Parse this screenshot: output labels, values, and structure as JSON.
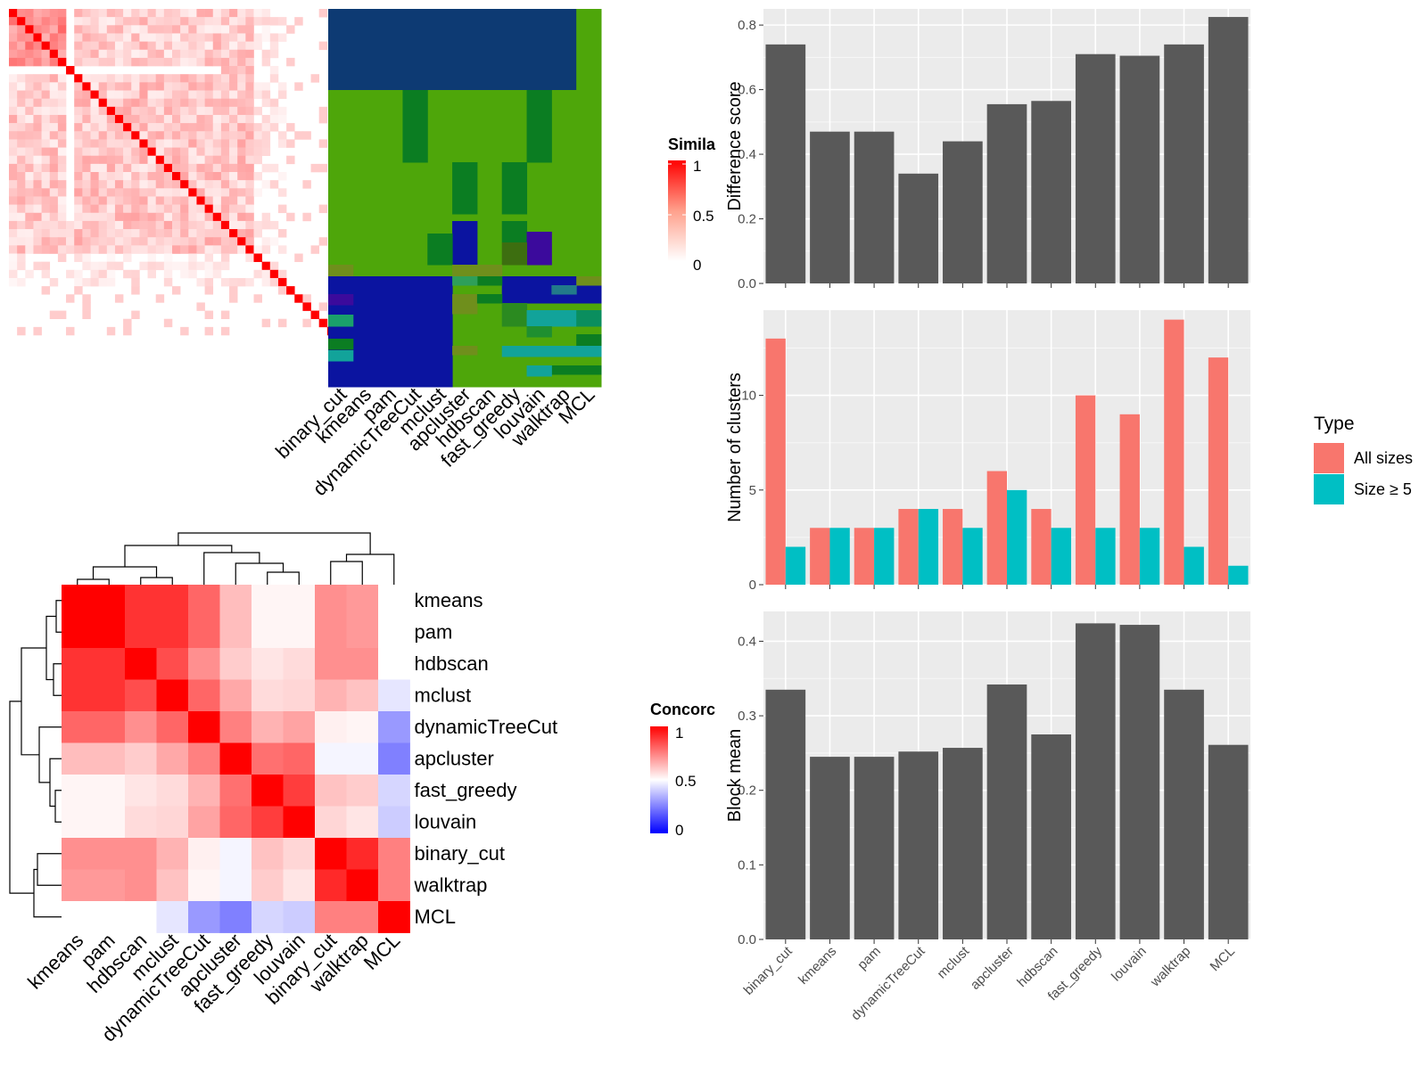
{
  "methods_heatmap_order": [
    "binary_cut",
    "kmeans",
    "pam",
    "dynamicTreeCut",
    "mclust",
    "apcluster",
    "hdbscan",
    "fast_greedy",
    "louvain",
    "walktrap",
    "MCL"
  ],
  "concordance_order": [
    "kmeans",
    "pam",
    "hdbscan",
    "mclust",
    "dynamicTreeCut",
    "apcluster",
    "fast_greedy",
    "louvain",
    "binary_cut",
    "walktrap",
    "MCL"
  ],
  "colors": {
    "heat_red": "#ff0000",
    "bar_dark": "#595959",
    "panel_bg": "#ebebeb",
    "all_sizes": "#f8766d",
    "size_ge5": "#00bfc4",
    "navy": "#0d3a73",
    "green": "#4ea60a",
    "dark_green": "#0b7d22",
    "blue": "#0b14a0",
    "purple": "#3b0a9c",
    "teal": "#12a39a"
  },
  "legends": {
    "similarity": {
      "title": "Simila",
      "ticks": [
        "1",
        "0.5",
        "0"
      ]
    },
    "concordance": {
      "title": "Concorc",
      "ticks": [
        "1",
        "0.5",
        "0"
      ]
    },
    "type": {
      "title": "Type",
      "items": [
        "All sizes",
        "Size ≥ 5"
      ]
    }
  },
  "chart_data": [
    {
      "type": "bar",
      "ylabel": "Difference score",
      "categories": [
        "binary_cut",
        "kmeans",
        "pam",
        "dynamicTreeCut",
        "mclust",
        "apcluster",
        "hdbscan",
        "fast_greedy",
        "louvain",
        "walktrap",
        "MCL"
      ],
      "values": [
        0.74,
        0.47,
        0.47,
        0.34,
        0.44,
        0.555,
        0.565,
        0.71,
        0.705,
        0.74,
        0.825
      ],
      "ylim": [
        0,
        0.85
      ],
      "yticks": [
        "0.0",
        "0.2",
        "0.4",
        "0.6",
        "0.8"
      ]
    },
    {
      "type": "bar",
      "ylabel": "Number of clusters",
      "categories": [
        "binary_cut",
        "kmeans",
        "pam",
        "dynamicTreeCut",
        "mclust",
        "apcluster",
        "hdbscan",
        "fast_greedy",
        "louvain",
        "walktrap",
        "MCL"
      ],
      "series": [
        {
          "name": "All sizes",
          "values": [
            13,
            3,
            3,
            4,
            4,
            6,
            4,
            10,
            9,
            14,
            12
          ]
        },
        {
          "name": "Size ≥ 5",
          "values": [
            2,
            3,
            3,
            4,
            3,
            5,
            3,
            3,
            3,
            2,
            1
          ]
        }
      ],
      "ylim": [
        0,
        14.5
      ],
      "yticks": [
        "0",
        "5",
        "10"
      ]
    },
    {
      "type": "bar",
      "ylabel": "Block mean",
      "categories": [
        "binary_cut",
        "kmeans",
        "pam",
        "dynamicTreeCut",
        "mclust",
        "apcluster",
        "hdbscan",
        "fast_greedy",
        "louvain",
        "walktrap",
        "MCL"
      ],
      "values": [
        0.335,
        0.245,
        0.245,
        0.252,
        0.257,
        0.342,
        0.275,
        0.424,
        0.422,
        0.335,
        0.261
      ],
      "ylim": [
        0,
        0.44
      ],
      "yticks": [
        "0.0",
        "0.1",
        "0.2",
        "0.3",
        "0.4"
      ]
    },
    {
      "type": "heatmap",
      "rows": [
        "kmeans",
        "pam",
        "hdbscan",
        "mclust",
        "dynamicTreeCut",
        "apcluster",
        "fast_greedy",
        "louvain",
        "binary_cut",
        "walktrap",
        "MCL"
      ],
      "columns": [
        "kmeans",
        "pam",
        "hdbscan",
        "mclust",
        "dynamicTreeCut",
        "apcluster",
        "fast_greedy",
        "louvain",
        "binary_cut",
        "walktrap",
        "MCL"
      ],
      "values": [
        [
          1.0,
          1.0,
          0.9,
          0.9,
          0.8,
          0.63,
          0.52,
          0.52,
          0.72,
          0.7,
          0.5
        ],
        [
          1.0,
          1.0,
          0.9,
          0.9,
          0.8,
          0.63,
          0.52,
          0.52,
          0.72,
          0.7,
          0.5
        ],
        [
          0.9,
          0.9,
          1.0,
          0.85,
          0.72,
          0.6,
          0.55,
          0.57,
          0.72,
          0.72,
          0.5
        ],
        [
          0.9,
          0.9,
          0.85,
          1.0,
          0.8,
          0.67,
          0.57,
          0.58,
          0.65,
          0.62,
          0.45
        ],
        [
          0.8,
          0.8,
          0.72,
          0.8,
          1.0,
          0.75,
          0.65,
          0.68,
          0.53,
          0.52,
          0.3
        ],
        [
          0.63,
          0.63,
          0.6,
          0.67,
          0.75,
          1.0,
          0.78,
          0.8,
          0.48,
          0.48,
          0.25
        ],
        [
          0.52,
          0.52,
          0.55,
          0.57,
          0.65,
          0.78,
          1.0,
          0.88,
          0.62,
          0.6,
          0.42
        ],
        [
          0.52,
          0.52,
          0.57,
          0.58,
          0.68,
          0.8,
          0.88,
          1.0,
          0.58,
          0.55,
          0.4
        ],
        [
          0.72,
          0.72,
          0.72,
          0.65,
          0.53,
          0.48,
          0.62,
          0.58,
          1.0,
          0.92,
          0.75
        ],
        [
          0.7,
          0.7,
          0.72,
          0.62,
          0.52,
          0.48,
          0.6,
          0.55,
          0.92,
          1.0,
          0.75
        ],
        [
          0.5,
          0.5,
          0.5,
          0.45,
          0.3,
          0.25,
          0.42,
          0.4,
          0.75,
          0.75,
          1.0
        ]
      ]
    }
  ]
}
